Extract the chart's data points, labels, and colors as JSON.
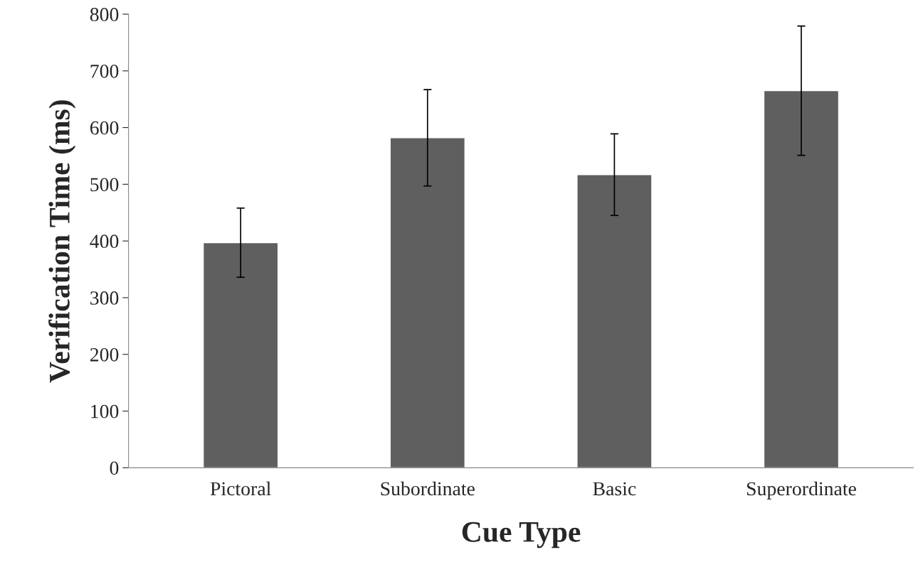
{
  "chart_data": {
    "type": "bar",
    "xlabel": "Cue Type",
    "ylabel": "Verification Time (ms)",
    "categories": [
      "Pictoral",
      "Subordinate",
      "Basic",
      "Superordinate"
    ],
    "values": [
      397,
      582,
      517,
      665
    ],
    "errors": [
      61,
      85,
      72,
      114
    ],
    "color": "#5f5f5f",
    "ylim": [
      0,
      800
    ],
    "yticks": [
      0,
      100,
      200,
      300,
      400,
      500,
      600,
      700,
      800
    ],
    "grid": false
  }
}
